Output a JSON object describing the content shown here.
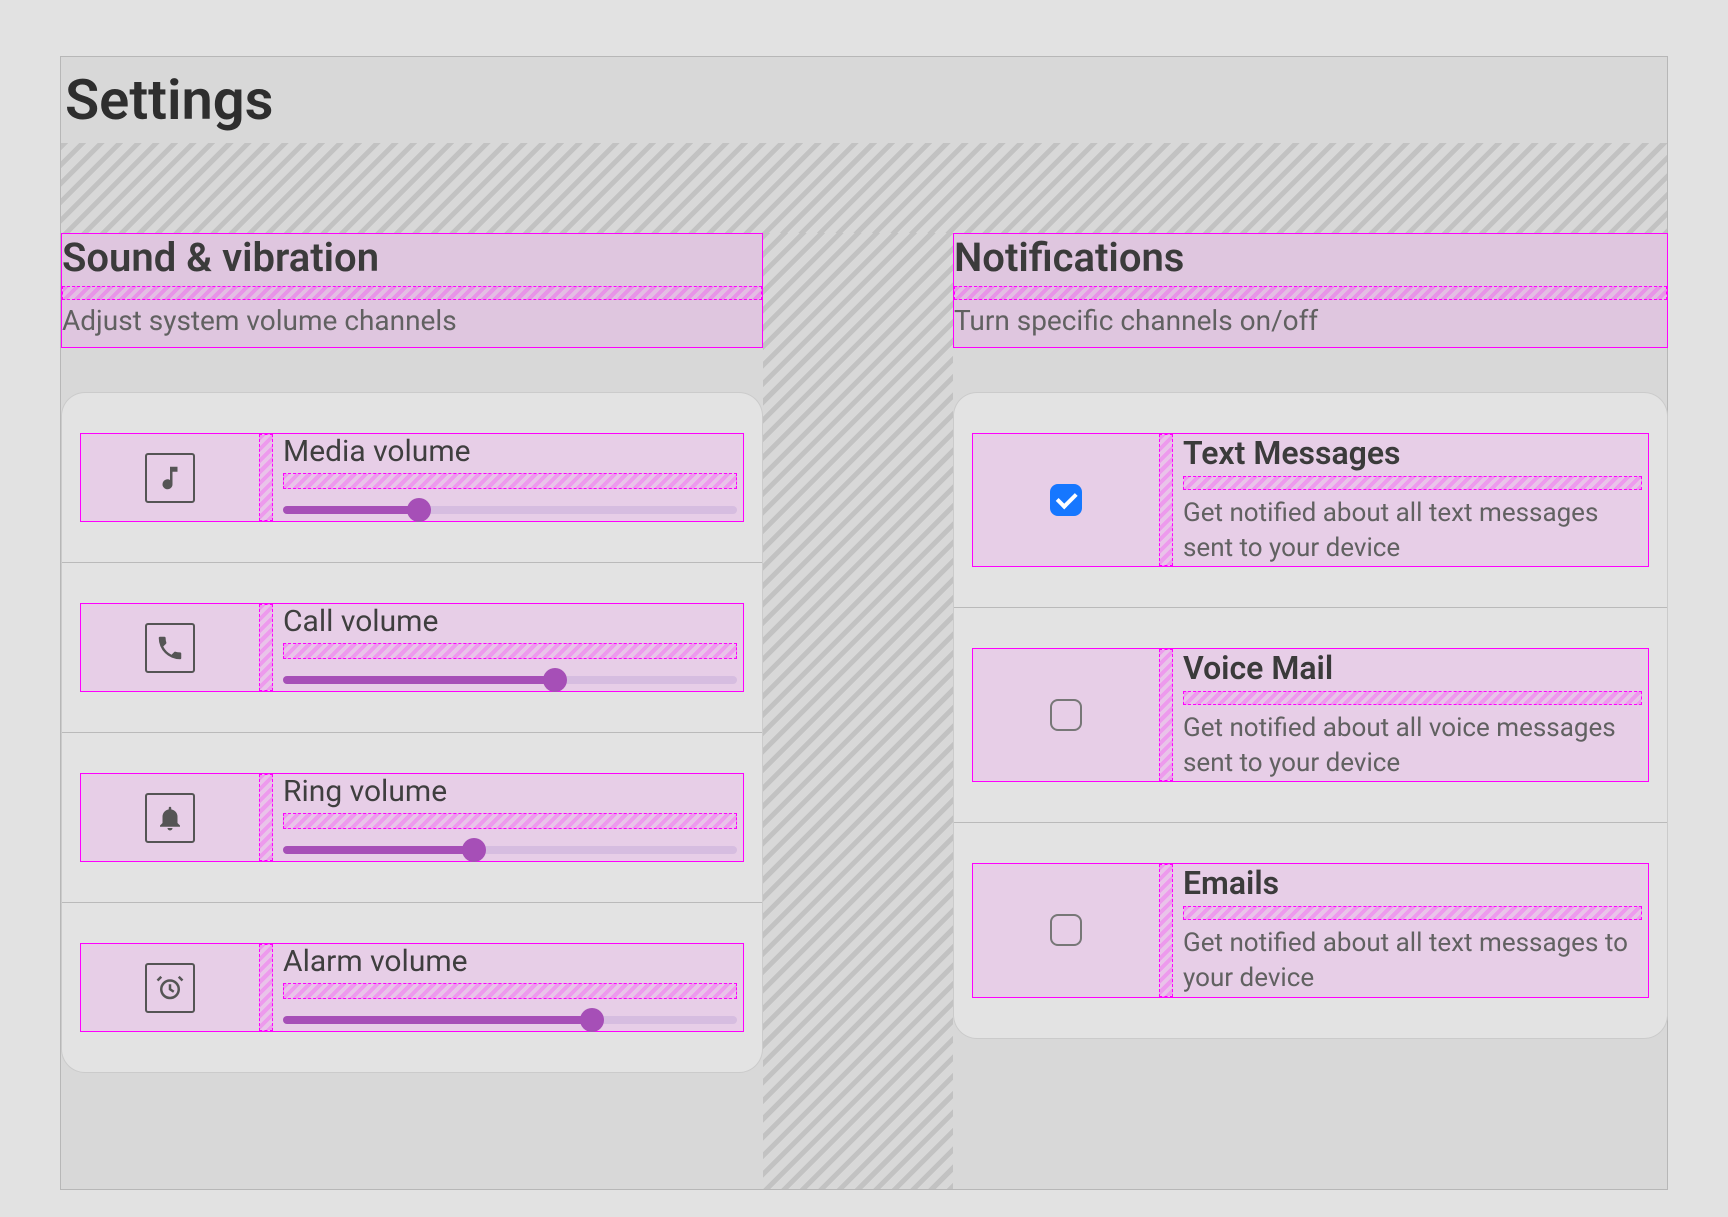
{
  "page": {
    "title": "Settings"
  },
  "layout": {
    "highlight_fill": "#eea5ee",
    "highlight_border": "#ff00ff",
    "slider_fill": "#a64fb7",
    "slider_track": "#d6bde0",
    "checkbox_checked_color": "#1677ff"
  },
  "sound": {
    "title": "Sound & vibration",
    "subtitle": "Adjust system volume channels",
    "items": [
      {
        "icon": "music-note",
        "label": "Media volume",
        "value": 30
      },
      {
        "icon": "phone",
        "label": "Call volume",
        "value": 60
      },
      {
        "icon": "bell",
        "label": "Ring volume",
        "value": 42
      },
      {
        "icon": "alarm",
        "label": "Alarm volume",
        "value": 68
      }
    ]
  },
  "notifications": {
    "title": "Notifications",
    "subtitle": "Turn specific channels on/off",
    "items": [
      {
        "title": "Text Messages",
        "desc": "Get notified about all text messages sent to your device",
        "checked": true
      },
      {
        "title": "Voice Mail",
        "desc": "Get notified about all voice messages sent to your device",
        "checked": false
      },
      {
        "title": "Emails",
        "desc": "Get notified about all text messages to your device",
        "checked": false
      }
    ]
  }
}
